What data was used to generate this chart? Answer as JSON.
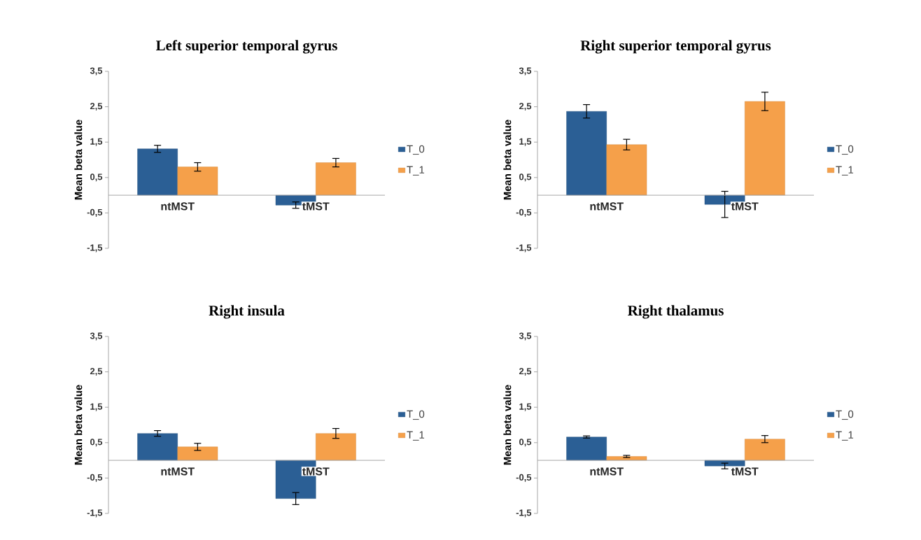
{
  "chart_data": [
    {
      "type": "bar",
      "title": "Left superior temporal gyrus",
      "ylabel": "Mean beta value",
      "categories": [
        "ntMST",
        "tMST"
      ],
      "series": [
        {
          "name": "T_0",
          "color": "#2b5f95",
          "values": [
            1.31,
            -0.28
          ],
          "errors": [
            0.1,
            0.09
          ]
        },
        {
          "name": "T_1",
          "color": "#f5a04a",
          "values": [
            0.8,
            0.92
          ],
          "errors": [
            0.12,
            0.12
          ]
        }
      ],
      "ylim": [
        -1.5,
        3.5
      ],
      "yticks": [
        {
          "value": -1.5,
          "label": "-1,5"
        },
        {
          "value": -0.5,
          "label": "-0,5"
        },
        {
          "value": 0.5,
          "label": "0,5"
        },
        {
          "value": 1.5,
          "label": "1,5"
        },
        {
          "value": 2.5,
          "label": "2,5"
        },
        {
          "value": 3.5,
          "label": "3,5"
        }
      ],
      "legend": "right"
    },
    {
      "type": "bar",
      "title": "Right superior temporal gyrus",
      "ylabel": "Mean beta value",
      "categories": [
        "ntMST",
        "tMST"
      ],
      "series": [
        {
          "name": "T_0",
          "color": "#2b5f95",
          "values": [
            2.37,
            -0.26
          ],
          "errors": [
            0.19,
            0.37
          ]
        },
        {
          "name": "T_1",
          "color": "#f5a04a",
          "values": [
            1.43,
            2.65
          ],
          "errors": [
            0.15,
            0.26
          ]
        }
      ],
      "ylim": [
        -1.5,
        3.5
      ],
      "yticks": [
        {
          "value": -1.5,
          "label": "-1,5"
        },
        {
          "value": -0.5,
          "label": "-0,5"
        },
        {
          "value": 0.5,
          "label": "0,5"
        },
        {
          "value": 1.5,
          "label": "1,5"
        },
        {
          "value": 2.5,
          "label": "2,5"
        },
        {
          "value": 3.5,
          "label": "3,5"
        }
      ],
      "legend": "right"
    },
    {
      "type": "bar",
      "title": "Right insula",
      "ylabel": "Mean beta value",
      "categories": [
        "ntMST",
        "tMST"
      ],
      "series": [
        {
          "name": "T_0",
          "color": "#2b5f95",
          "values": [
            0.76,
            -1.08
          ],
          "errors": [
            0.08,
            0.17
          ]
        },
        {
          "name": "T_1",
          "color": "#f5a04a",
          "values": [
            0.38,
            0.76
          ],
          "errors": [
            0.1,
            0.14
          ]
        }
      ],
      "ylim": [
        -1.5,
        3.5
      ],
      "yticks": [
        {
          "value": -1.5,
          "label": "-1,5"
        },
        {
          "value": -0.5,
          "label": "-0,5"
        },
        {
          "value": 0.5,
          "label": "0,5"
        },
        {
          "value": 1.5,
          "label": "1,5"
        },
        {
          "value": 2.5,
          "label": "2,5"
        },
        {
          "value": 3.5,
          "label": "3,5"
        }
      ],
      "legend": "right"
    },
    {
      "type": "bar",
      "title": "Right thalamus",
      "ylabel": "Mean beta value",
      "categories": [
        "ntMST",
        "tMST"
      ],
      "series": [
        {
          "name": "T_0",
          "color": "#2b5f95",
          "values": [
            0.66,
            -0.16
          ],
          "errors": [
            0.03,
            0.08
          ]
        },
        {
          "name": "T_1",
          "color": "#f5a04a",
          "values": [
            0.11,
            0.6
          ],
          "errors": [
            0.03,
            0.1
          ]
        }
      ],
      "ylim": [
        -1.5,
        3.5
      ],
      "yticks": [
        {
          "value": -1.5,
          "label": "-1,5"
        },
        {
          "value": -0.5,
          "label": "-0,5"
        },
        {
          "value": 0.5,
          "label": "0,5"
        },
        {
          "value": 1.5,
          "label": "1,5"
        },
        {
          "value": 2.5,
          "label": "2,5"
        },
        {
          "value": 3.5,
          "label": "3,5"
        }
      ],
      "legend": "right"
    }
  ]
}
